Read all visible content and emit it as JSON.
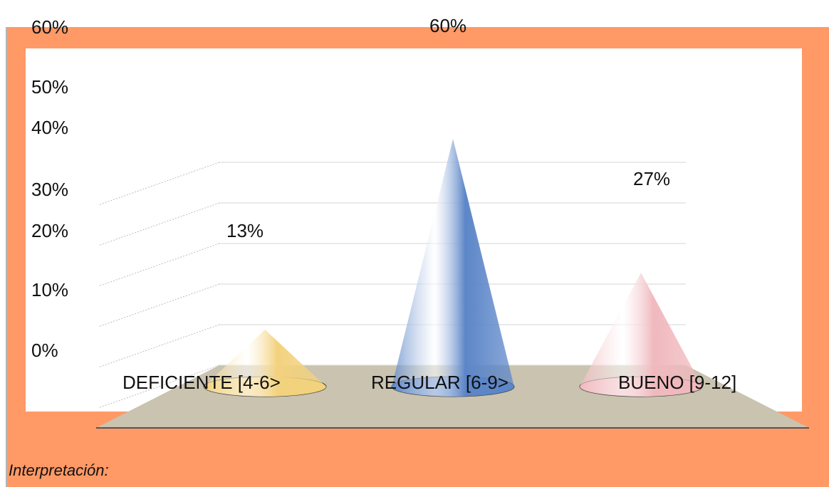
{
  "chart_data": {
    "type": "bar",
    "style": "3d-cone",
    "categories": [
      "DEFICIENTE [4-6>",
      "REGULAR [6-9>",
      "BUENO [9-12]"
    ],
    "values": [
      13,
      60,
      27
    ],
    "value_labels": [
      "13%",
      "60%",
      "27%"
    ],
    "y_ticks": [
      "0%",
      "10%",
      "20%",
      "30%",
      "40%",
      "50%",
      "60%"
    ],
    "ylim": [
      0,
      60
    ],
    "grid": true,
    "colors": [
      "#F3D27E",
      "#5C86C8",
      "#F0B9BE"
    ],
    "title": "",
    "xlabel": "",
    "ylabel": ""
  },
  "footer": {
    "interpretation": "Interpretación:"
  }
}
